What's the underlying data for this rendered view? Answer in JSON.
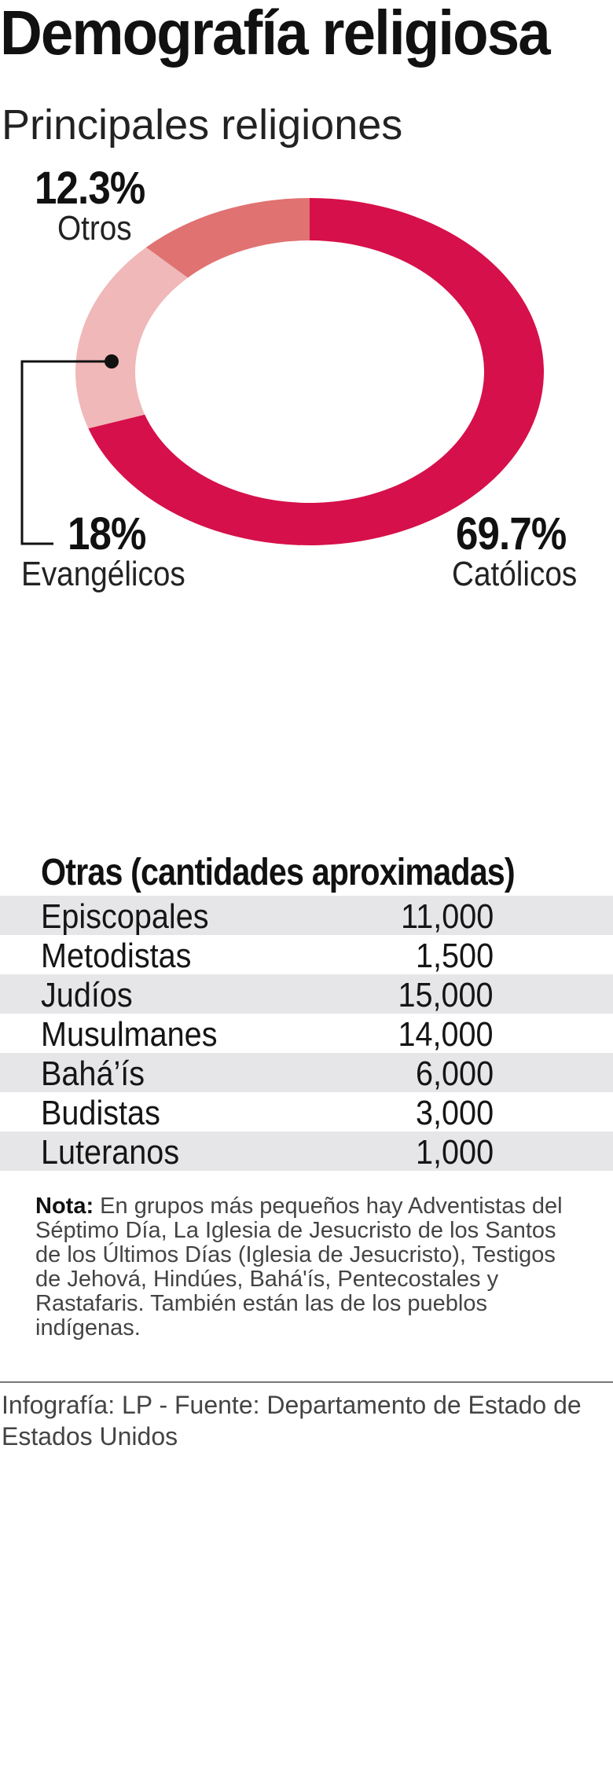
{
  "header": {
    "title": "Demografía religiosa",
    "subtitle": "Principales religiones"
  },
  "chart_data": {
    "type": "pie",
    "subtype": "donut",
    "title": "Principales religiones",
    "slices": [
      {
        "name": "Católicos",
        "value": 69.7,
        "label": "69.7%",
        "color": "#D6104A"
      },
      {
        "name": "Evangélicos",
        "value": 18,
        "label": "18%",
        "color": "#F0B8B8"
      },
      {
        "name": "Otros",
        "value": 12.3,
        "label": "12.3%",
        "color": "#E07272"
      }
    ]
  },
  "table": {
    "title": "Otras (cantidades aproximadas)",
    "rows": [
      {
        "name": "Episcopales",
        "value": "11,000"
      },
      {
        "name": "Metodistas",
        "value": "1,500"
      },
      {
        "name": "Judíos",
        "value": "15,000"
      },
      {
        "name": "Musulmanes",
        "value": "14,000"
      },
      {
        "name": "Bahá’ís",
        "value": "6,000"
      },
      {
        "name": "Budistas",
        "value": "3,000"
      },
      {
        "name": "Luteranos",
        "value": "1,000"
      }
    ]
  },
  "note": {
    "label": "Nota:",
    "text": " En grupos más pequeños hay Adventistas del Séptimo Día, La Iglesia de Jesucristo de los Santos de los Últimos Días (Iglesia de Jesucristo), Testigos de Jehová, Hindúes, Bahá'ís, Pentecostales y Rastafaris. También están las de los pueblos indígenas."
  },
  "footer": {
    "credit": "Infografía: LP - Fuente: Departamento de Estado de Estados Unidos"
  }
}
